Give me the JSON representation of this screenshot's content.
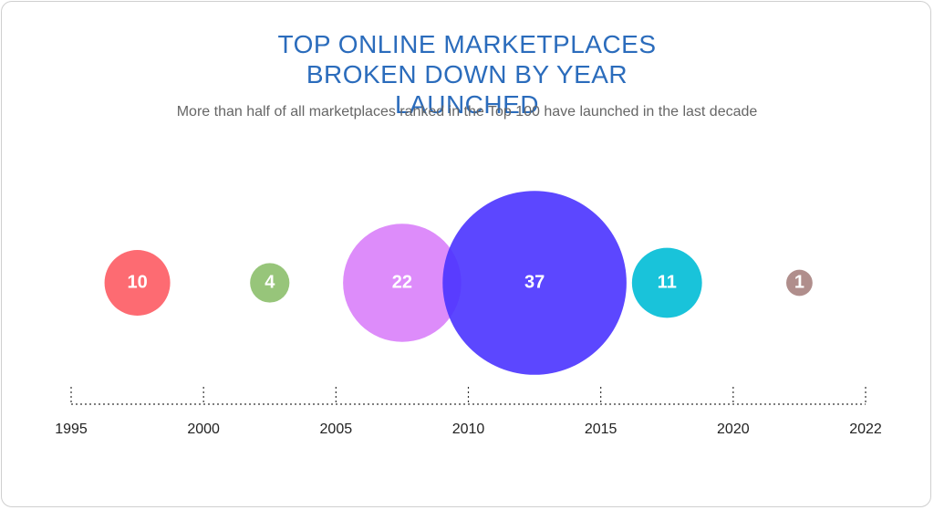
{
  "chart_data": {
    "type": "bubble",
    "title": "TOP ONLINE MARKETPLACES BROKEN DOWN BY YEAR LAUNCHED",
    "subtitle": "More than half of all marketplaces ranked in the Top 100 have launched in the last decade",
    "xticks": [
      1995,
      2000,
      2005,
      2010,
      2015,
      2020,
      2022
    ],
    "values": [
      10,
      4,
      22,
      37,
      11,
      1
    ],
    "colors": [
      "#fd5b63",
      "#8cbf6c",
      "#d97ff9",
      "#4a33ff",
      "#00bcd6",
      "#a7827f"
    ]
  }
}
